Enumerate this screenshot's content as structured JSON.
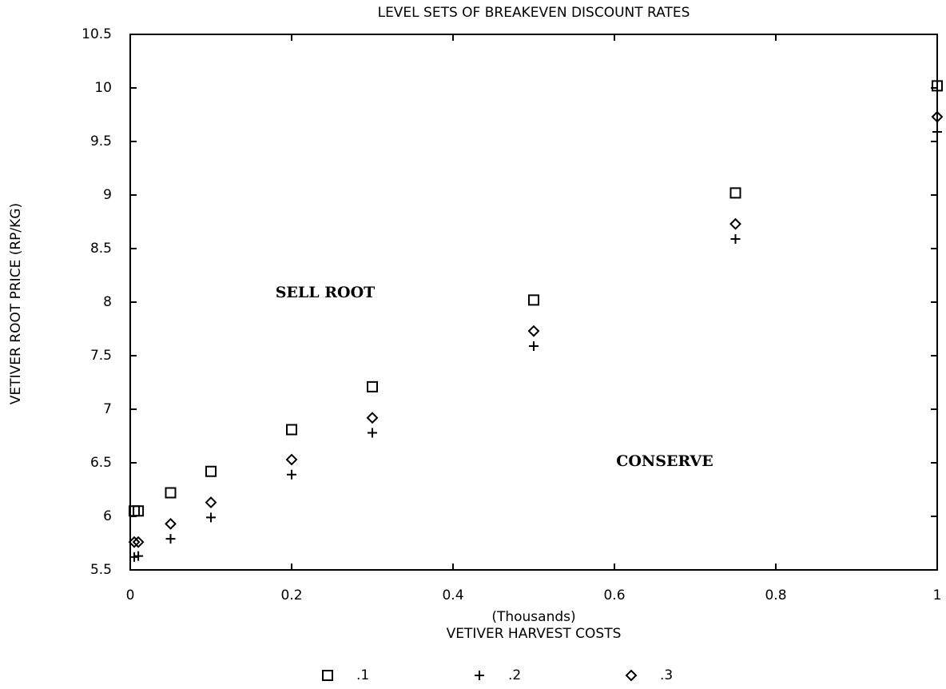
{
  "chart_data": {
    "type": "scatter",
    "title": "LEVEL SETS OF BREAKEVEN DISCOUNT RATES",
    "xlabel": "VETIVER HARVEST COSTS",
    "xunit": "(Thousands)",
    "ylabel": "VETIVER ROOT PRICE (RP/KG)",
    "annotations": [
      "SELL ROOT",
      "CONSERVE"
    ],
    "xlim": [
      0,
      1
    ],
    "xticks": [
      0,
      0.2,
      0.4,
      0.6,
      0.8,
      1
    ],
    "ylim": [
      5.5,
      10.5
    ],
    "yticks": [
      5.5,
      6,
      6.5,
      7,
      7.5,
      8,
      8.5,
      9,
      9.5,
      10,
      10.5
    ],
    "x": [
      0.005,
      0.01,
      0.05,
      0.1,
      0.2,
      0.3,
      0.5,
      0.75,
      1
    ],
    "series": [
      {
        "name": ".1",
        "marker": "square",
        "color": "#000000",
        "values": [
          6.05,
          6.05,
          6.22,
          6.42,
          6.81,
          7.21,
          8.02,
          9.02,
          10.02
        ]
      },
      {
        "name": ".2",
        "marker": "plus",
        "color": "#000000",
        "values": [
          5.62,
          5.63,
          5.79,
          5.99,
          6.39,
          6.78,
          7.59,
          8.59,
          9.59
        ]
      },
      {
        "name": ".3",
        "marker": "diamond",
        "color": "#000000",
        "values": [
          5.76,
          5.76,
          5.93,
          6.13,
          6.53,
          6.92,
          7.73,
          8.73,
          9.73
        ]
      }
    ]
  }
}
